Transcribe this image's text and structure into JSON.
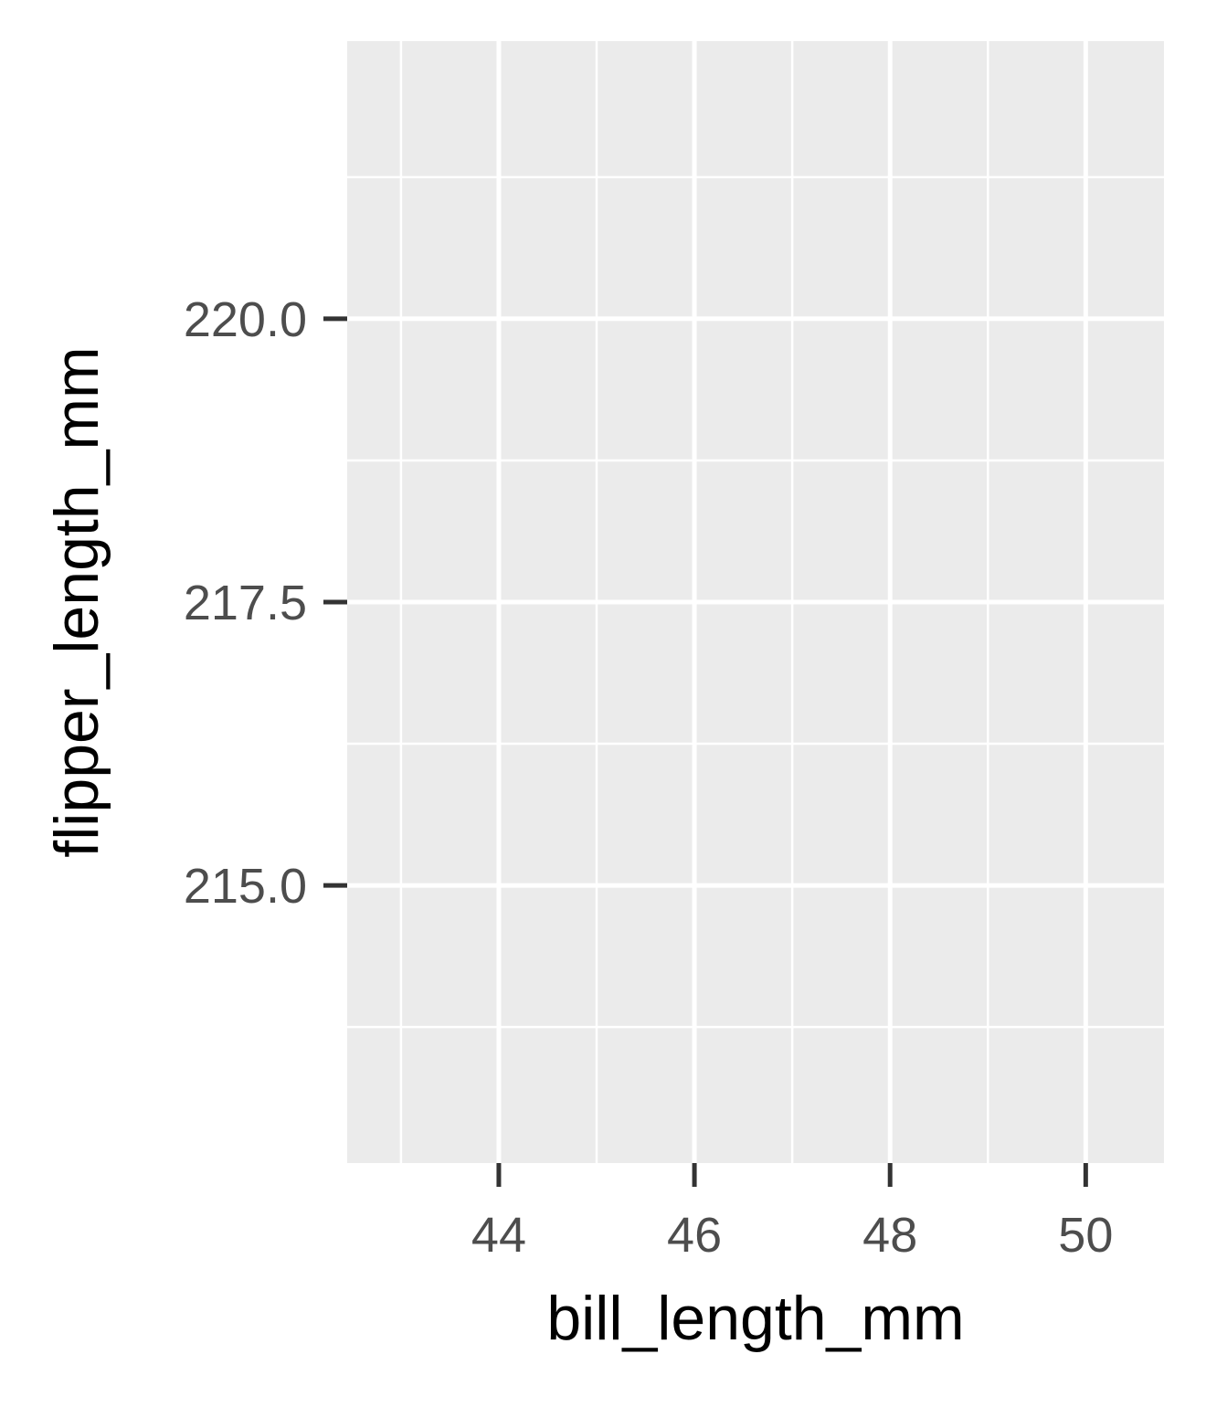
{
  "chart_data": {
    "type": "scatter",
    "title": "",
    "xlabel": "bill_length_mm",
    "ylabel": "flipper_length_mm",
    "series": [],
    "xlim": [
      42.45,
      50.8
    ],
    "ylim": [
      212.55,
      222.45
    ],
    "x_ticks": [
      44,
      46,
      48,
      50
    ],
    "x_tick_labels": [
      "44",
      "46",
      "48",
      "50"
    ],
    "x_minor_ticks": [
      43,
      45,
      47,
      49
    ],
    "y_ticks": [
      215.0,
      217.5,
      220.0
    ],
    "y_tick_labels": [
      "215.0",
      "217.5",
      "220.0"
    ],
    "y_minor_ticks": [
      213.75,
      216.25,
      218.75,
      221.25
    ],
    "grid": true,
    "panel_background": "#ebebeb",
    "grid_color": "#ffffff"
  }
}
